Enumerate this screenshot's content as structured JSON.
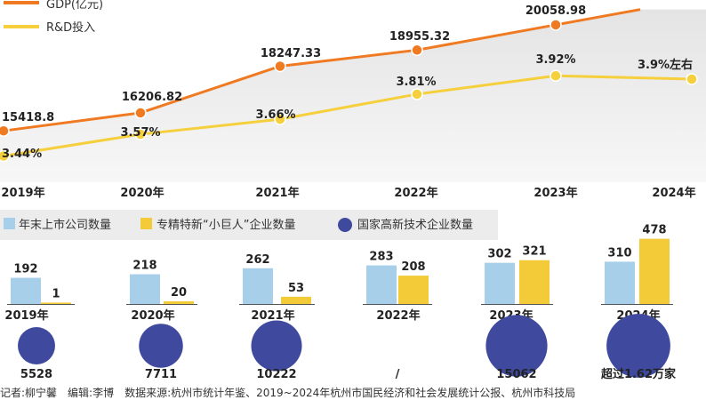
{
  "chart_data": [
    {
      "type": "line",
      "x": [
        "2019年",
        "2020年",
        "2021年",
        "2022年",
        "2023年",
        "2024年"
      ],
      "series": [
        {
          "name": "GDP(亿元)",
          "values": [
            15418.8,
            16206.82,
            18247.33,
            18955.32,
            20058.98,
            null
          ],
          "labels": [
            "15418.8",
            "16206.82",
            "18247.33",
            "18955.32",
            "20058.98",
            ""
          ],
          "color": "#F07A22"
        },
        {
          "name": "R&D投入",
          "values": [
            3.44,
            3.57,
            3.66,
            3.81,
            3.92,
            3.9
          ],
          "labels": [
            "3.44%",
            "3.57%",
            "3.66%",
            "3.81%",
            "3.92%",
            "3.9%左右"
          ],
          "color": "#F5CF3C"
        }
      ]
    },
    {
      "type": "bar",
      "categories": [
        "2019年",
        "2020年",
        "2021年",
        "2022年",
        "2023年",
        "2024年"
      ],
      "series": [
        {
          "name": "年末上市公司数量",
          "values": [
            192,
            218,
            262,
            283,
            302,
            310
          ],
          "labels": [
            "192",
            "218",
            "262",
            "283",
            "302",
            "310"
          ],
          "color": "#A8CFEA"
        },
        {
          "name": "专精特新“小巨人”企业数量",
          "values": [
            1,
            20,
            53,
            208,
            321,
            478
          ],
          "labels": [
            "1",
            "20",
            "53",
            "208",
            "321",
            "478"
          ],
          "color": "#F3CB38"
        }
      ]
    },
    {
      "type": "scatter",
      "categories": [
        "2019年",
        "2020年",
        "2021年",
        "2022年",
        "2023年",
        "2024年"
      ],
      "series": [
        {
          "name": "国家高新技术企业数量",
          "values": [
            5528,
            7711,
            10222,
            null,
            15062,
            16200
          ],
          "labels": [
            "5528",
            "7711",
            "10222",
            "/",
            "15062",
            "超过1.62万家"
          ],
          "color": "#3F4A9E"
        }
      ]
    }
  ],
  "credits": "记者:柳宁馨　编辑:李博　数据来源:杭州市统计年鉴、2019~2024年杭州市国民经济和社会发展统计公报、杭州市科技局"
}
